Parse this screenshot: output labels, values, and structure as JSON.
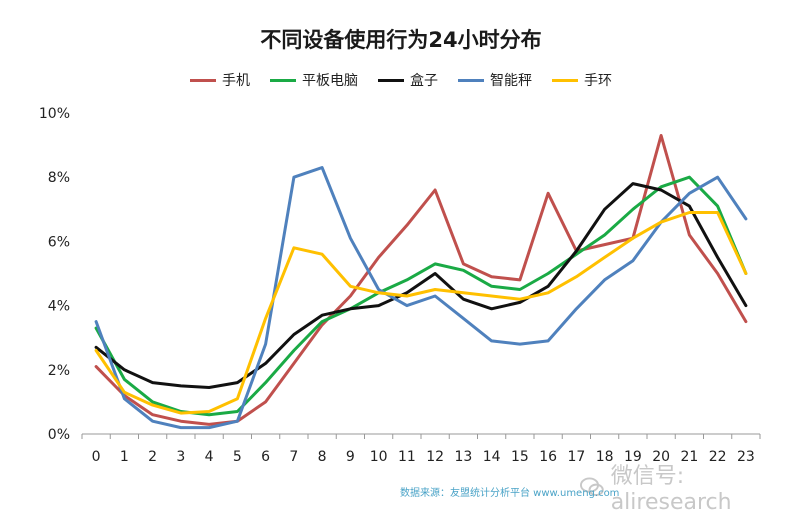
{
  "chart_data": {
    "type": "line",
    "title": "不同设备使用行为24小时分布",
    "xlabel": "",
    "ylabel": "",
    "x": [
      0,
      1,
      2,
      3,
      4,
      5,
      6,
      7,
      8,
      9,
      10,
      11,
      12,
      13,
      14,
      15,
      16,
      17,
      18,
      19,
      20,
      21,
      22,
      23
    ],
    "x_tick_labels": [
      "0",
      "1",
      "2",
      "3",
      "4",
      "5",
      "6",
      "7",
      "8",
      "9",
      "10",
      "11",
      "12",
      "13",
      "14",
      "15",
      "16",
      "17",
      "18",
      "19",
      "20",
      "21",
      "22",
      "23"
    ],
    "ylim": [
      0,
      10
    ],
    "y_ticks": [
      0,
      2,
      4,
      6,
      8,
      10
    ],
    "y_tick_labels": [
      "0%",
      "2%",
      "4%",
      "6%",
      "8%",
      "10%"
    ],
    "grid": false,
    "legend_position": "top",
    "series": [
      {
        "name": "手机",
        "color": "#c0504d",
        "values": [
          2.1,
          1.2,
          0.6,
          0.4,
          0.3,
          0.4,
          1.0,
          2.2,
          3.4,
          4.3,
          5.5,
          6.5,
          7.6,
          5.3,
          4.9,
          4.8,
          7.5,
          5.7,
          5.9,
          6.1,
          9.3,
          6.2,
          5.0,
          3.5
        ]
      },
      {
        "name": "平板电脑",
        "color": "#1aaa45",
        "values": [
          3.3,
          1.7,
          1.0,
          0.7,
          0.6,
          0.7,
          1.6,
          2.6,
          3.5,
          3.9,
          4.4,
          4.8,
          5.3,
          5.1,
          4.6,
          4.5,
          5.0,
          5.6,
          6.2,
          7.0,
          7.7,
          8.0,
          7.1,
          5.0
        ]
      },
      {
        "name": "盒子",
        "color": "#111111",
        "values": [
          2.7,
          2.0,
          1.6,
          1.5,
          1.45,
          1.6,
          2.2,
          3.1,
          3.7,
          3.9,
          4.0,
          4.4,
          5.0,
          4.2,
          3.9,
          4.1,
          4.6,
          5.7,
          7.0,
          7.8,
          7.6,
          7.1,
          5.5,
          4.0
        ]
      },
      {
        "name": "智能秤",
        "color": "#4f81bd",
        "values": [
          3.5,
          1.1,
          0.4,
          0.2,
          0.2,
          0.4,
          2.8,
          8.0,
          8.3,
          6.1,
          4.5,
          4.0,
          4.3,
          3.6,
          2.9,
          2.8,
          2.9,
          3.9,
          4.8,
          5.4,
          6.6,
          7.5,
          8.0,
          6.7
        ]
      },
      {
        "name": "手环",
        "color": "#ffc000",
        "values": [
          2.6,
          1.3,
          0.9,
          0.65,
          0.7,
          1.1,
          3.6,
          5.8,
          5.6,
          4.6,
          4.4,
          4.3,
          4.5,
          4.4,
          4.3,
          4.2,
          4.4,
          4.9,
          5.5,
          6.1,
          6.6,
          6.9,
          6.9,
          5.0
        ]
      }
    ]
  },
  "source_note": "数据来源：友盟统计分析平台 www.umeng.com",
  "watermark": "微信号: aliresearch"
}
